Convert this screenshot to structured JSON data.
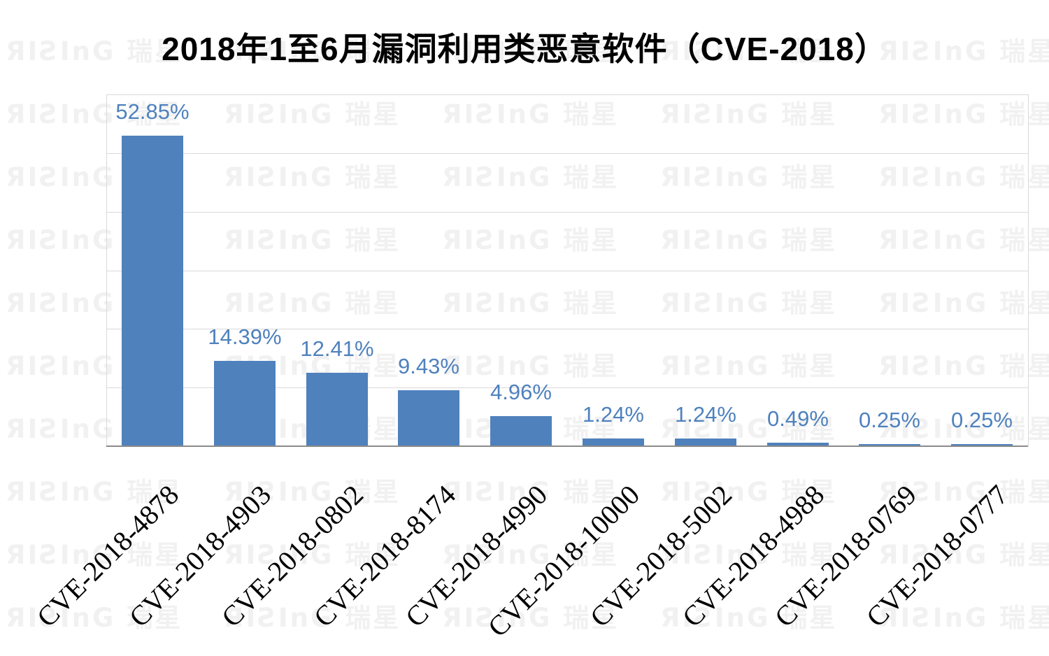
{
  "title": "2018年1至6月漏洞利用类恶意软件（CVE-2018）",
  "watermark": {
    "brand": "RISING 瑞星",
    "stylized_text": "ЯIƧInG 瑞星",
    "color": "#f1f1f1"
  },
  "chart_data": {
    "type": "bar",
    "title": "2018年1至6月漏洞利用类恶意软件（CVE-2018）",
    "categories": [
      "CVE-2018-4878",
      "CVE-2018-4903",
      "CVE-2018-0802",
      "CVE-2018-8174",
      "CVE-2018-4990",
      "CVE-2018-10000",
      "CVE-2018-5002",
      "CVE-2018-4988",
      "CVE-2018-0769",
      "CVE-2018-0777"
    ],
    "values": [
      52.85,
      14.39,
      12.41,
      9.43,
      4.96,
      1.24,
      1.24,
      0.49,
      0.25,
      0.25
    ],
    "value_labels": [
      "52.85%",
      "14.39%",
      "12.41%",
      "9.43%",
      "4.96%",
      "1.24%",
      "1.24%",
      "0.49%",
      "0.25%",
      "0.25%"
    ],
    "xlabel": "",
    "ylabel": "",
    "ylim": [
      0,
      60
    ],
    "gridline_step": 10,
    "grid": true,
    "legend": false,
    "x_tick_rotation_deg": 45,
    "bar_color": "#4F81BD",
    "value_label_color": "#4F81BD",
    "category_label_color": "#000000",
    "gridline_color": "#d9d9d9",
    "baseline_color": "#8a8a8a"
  }
}
